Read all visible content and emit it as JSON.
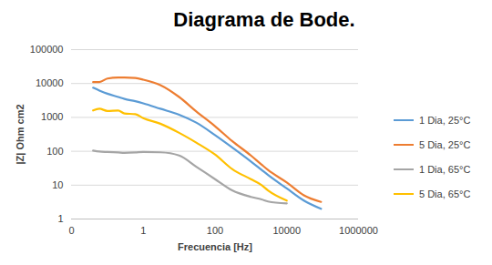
{
  "chart_data": {
    "type": "line",
    "title": "Diagrama de Bode.",
    "x_label": "Frecuencia [Hz]",
    "y_label": "|Z| Ohm cm2",
    "log": true,
    "grid": true,
    "legend": "right",
    "xlim": [
      0.01,
      1000000
    ],
    "xticks": [
      {
        "value": 0.01,
        "label": "0"
      },
      1,
      100,
      10000,
      1000000
    ],
    "ylim": [
      1,
      100000
    ],
    "yticks": [
      1,
      10,
      100,
      1000,
      10000,
      100000
    ],
    "x": [
      0.04,
      0.06,
      0.1,
      0.2,
      0.3,
      0.6,
      1,
      3,
      10,
      30,
      100,
      300,
      1000,
      2000,
      3000,
      10000,
      30000,
      90000
    ],
    "series": [
      {
        "name": "1 Dia, 25°C",
        "color": "#5b9bd5",
        "values": [
          7500,
          6200,
          5000,
          4000,
          3500,
          3000,
          2600,
          1800,
          1200,
          700,
          300,
          130,
          50,
          28,
          20,
          8,
          3.5,
          2
        ]
      },
      {
        "name": "5 Dia, 25°C",
        "color": "#ed7d31",
        "values": [
          11000,
          11000,
          14000,
          15000,
          15000,
          14500,
          13000,
          9000,
          4000,
          1500,
          550,
          200,
          75,
          40,
          28,
          12,
          5,
          3.2
        ]
      },
      {
        "name": "1 Dia, 65°C",
        "color": "#a5a5a5",
        "values": [
          105,
          98,
          95,
          92,
          90,
          92,
          95,
          93,
          75,
          35,
          15,
          7,
          4.5,
          3.8,
          3.3,
          2.9,
          null,
          null
        ]
      },
      {
        "name": "5 Dia, 65°C",
        "color": "#ffc000",
        "values": [
          1600,
          1800,
          1550,
          1600,
          1300,
          1250,
          950,
          650,
          350,
          180,
          80,
          30,
          15,
          10,
          7,
          3.5,
          null,
          null
        ]
      }
    ]
  }
}
